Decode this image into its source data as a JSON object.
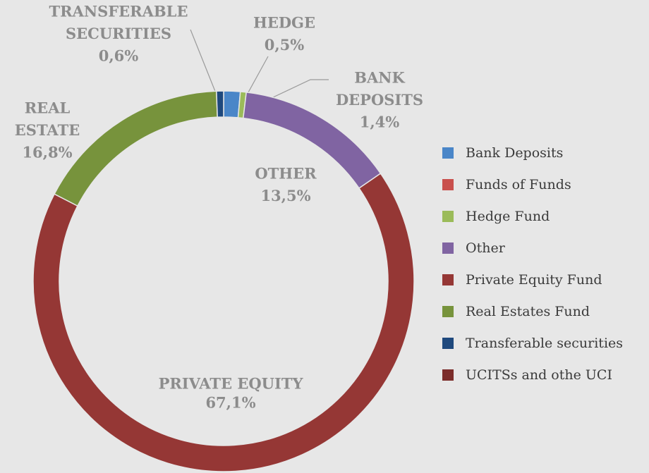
{
  "chart_data": {
    "type": "donut",
    "categories": [
      "Bank Deposits",
      "Funds of Funds",
      "Hedge Fund",
      "Other",
      "Private Equity Fund",
      "Real Estates Fund",
      "Transferable securities",
      "UCITSs and othe UCI"
    ],
    "values": [
      1.4,
      0,
      0.5,
      13.5,
      67.1,
      16.8,
      0.6,
      0
    ],
    "value_labels": [
      "1,4%",
      null,
      "0,5%",
      "13,5%",
      "67,1%",
      "16,8%",
      "0,6%",
      null
    ],
    "slice_labels": [
      [
        "BANK",
        "DEPOSITS"
      ],
      null,
      [
        "HEDGE"
      ],
      [
        "OTHER"
      ],
      [
        "PRIVATE EQUITY"
      ],
      [
        "REAL",
        "ESTATE"
      ],
      [
        "TRANSFERABLE",
        "SECURITIES"
      ],
      null
    ],
    "colors": [
      "#4a86c8",
      "#c9504d",
      "#9bbb59",
      "#8064a2",
      "#953735",
      "#77933c",
      "#1f497d",
      "#7b2c2a"
    ],
    "legend": "right"
  }
}
